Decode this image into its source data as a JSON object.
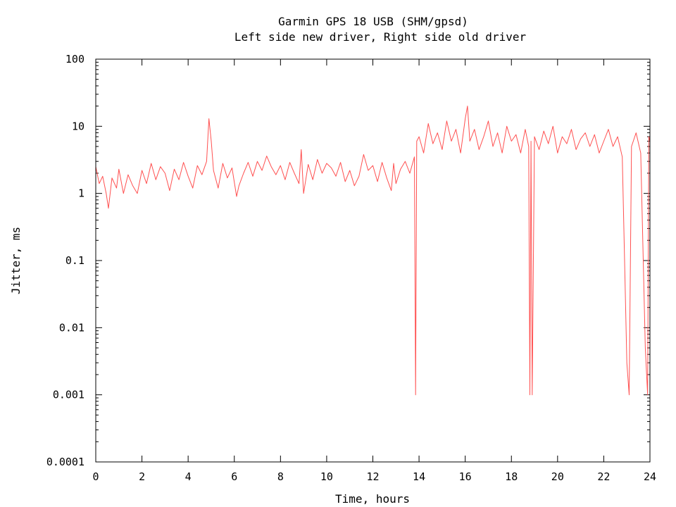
{
  "chart_data": {
    "type": "line",
    "title": "Garmin GPS 18 USB (SHM/gpsd)",
    "subtitle": "Left side new driver, Right side old driver",
    "xlabel": "Time, hours",
    "ylabel": "Jitter, ms",
    "xlim": [
      0,
      24
    ],
    "ylim": [
      0.0001,
      100
    ],
    "yscale": "log",
    "grid": false,
    "x_ticks": [
      0,
      2,
      4,
      6,
      8,
      10,
      12,
      14,
      16,
      18,
      20,
      22,
      24
    ],
    "x_tick_labels": [
      "0",
      "2",
      "4",
      "6",
      "8",
      "10",
      "12",
      "14",
      "16",
      "18",
      "20",
      "22",
      "24"
    ],
    "y_ticks": [
      0.0001,
      0.001,
      0.01,
      0.1,
      1,
      10,
      100
    ],
    "y_tick_labels": [
      "0.0001",
      "0.001",
      "0.01",
      "0.1",
      "1",
      "10",
      "100"
    ],
    "series": [
      {
        "color": "#ff5050",
        "x": [
          0.0,
          0.15,
          0.3,
          0.45,
          0.55,
          0.7,
          0.9,
          1.0,
          1.2,
          1.4,
          1.6,
          1.8,
          2.0,
          2.2,
          2.4,
          2.6,
          2.8,
          3.0,
          3.2,
          3.4,
          3.6,
          3.8,
          4.0,
          4.2,
          4.4,
          4.6,
          4.8,
          4.9,
          5.0,
          5.1,
          5.3,
          5.5,
          5.7,
          5.9,
          6.1,
          6.2,
          6.4,
          6.6,
          6.8,
          7.0,
          7.2,
          7.4,
          7.6,
          7.8,
          8.0,
          8.2,
          8.4,
          8.6,
          8.8,
          8.9,
          9.0,
          9.2,
          9.4,
          9.6,
          9.8,
          10.0,
          10.2,
          10.4,
          10.6,
          10.8,
          11.0,
          11.2,
          11.4,
          11.6,
          11.8,
          12.0,
          12.2,
          12.4,
          12.6,
          12.8,
          12.9,
          13.0,
          13.2,
          13.4,
          13.6,
          13.8,
          13.85,
          13.9,
          14.0,
          14.2,
          14.4,
          14.6,
          14.8,
          15.0,
          15.2,
          15.4,
          15.6,
          15.8,
          16.0,
          16.1,
          16.2,
          16.4,
          16.6,
          16.8,
          17.0,
          17.2,
          17.4,
          17.6,
          17.8,
          18.0,
          18.2,
          18.4,
          18.6,
          18.75,
          18.8,
          18.85,
          18.9,
          19.0,
          19.2,
          19.4,
          19.6,
          19.8,
          20.0,
          20.2,
          20.4,
          20.6,
          20.8,
          21.0,
          21.2,
          21.4,
          21.6,
          21.8,
          22.0,
          22.2,
          22.4,
          22.6,
          22.8,
          23.0,
          23.1,
          23.2,
          23.4,
          23.6,
          23.8,
          23.9,
          23.95,
          24.0
        ],
        "y": [
          2.5,
          1.4,
          1.8,
          1.0,
          0.6,
          1.7,
          1.2,
          2.3,
          1.0,
          1.9,
          1.3,
          1.0,
          2.2,
          1.4,
          2.8,
          1.6,
          2.5,
          2.0,
          1.1,
          2.3,
          1.6,
          2.9,
          1.8,
          1.2,
          2.6,
          1.9,
          3.0,
          13.0,
          6.0,
          2.2,
          1.2,
          2.8,
          1.7,
          2.4,
          0.9,
          1.3,
          2.0,
          2.9,
          1.8,
          3.0,
          2.2,
          3.6,
          2.5,
          1.9,
          2.6,
          1.6,
          2.9,
          2.0,
          1.4,
          4.5,
          1.0,
          2.7,
          1.6,
          3.2,
          2.0,
          2.8,
          2.4,
          1.8,
          2.9,
          1.5,
          2.2,
          1.3,
          1.8,
          3.8,
          2.2,
          2.6,
          1.5,
          2.9,
          1.7,
          1.1,
          2.8,
          1.4,
          2.3,
          3.0,
          2.0,
          3.5,
          0.001,
          6.0,
          7.0,
          4.0,
          11.0,
          5.5,
          8.0,
          4.5,
          12.0,
          6.0,
          9.0,
          4.0,
          13.0,
          20.0,
          6.0,
          9.0,
          4.5,
          7.0,
          12.0,
          5.0,
          8.0,
          4.0,
          10.0,
          6.0,
          7.5,
          4.0,
          9.0,
          5.0,
          0.001,
          6.0,
          0.001,
          7.0,
          4.5,
          8.5,
          5.5,
          10.0,
          4.0,
          7.0,
          5.5,
          9.0,
          4.5,
          6.5,
          8.0,
          5.0,
          7.5,
          4.0,
          6.0,
          9.0,
          5.0,
          7.0,
          3.5,
          0.003,
          0.001,
          5.0,
          8.0,
          4.0,
          0.005,
          0.001,
          7.0,
          6.0
        ]
      }
    ]
  }
}
